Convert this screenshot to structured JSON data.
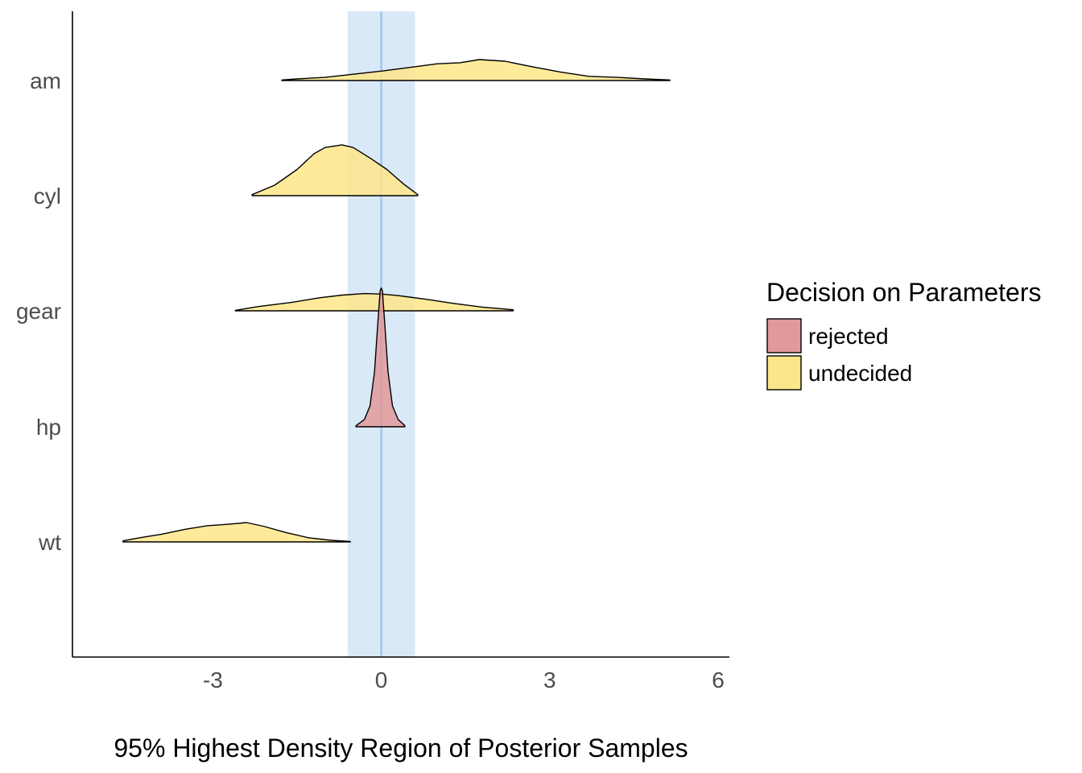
{
  "chart_data": {
    "type": "density-ridges",
    "xlabel": "95% Highest Density Region of Posterior Samples",
    "ylabel": "",
    "xlim": [
      -5.5,
      6.2
    ],
    "xticks": [
      -3,
      0,
      3,
      6
    ],
    "xtick_labels": [
      "-3",
      "0",
      "3",
      "6"
    ],
    "categories": [
      "am",
      "cyl",
      "gear",
      "hp",
      "wt"
    ],
    "rope": {
      "low": -0.6,
      "high": 0.6,
      "center": 0,
      "color": "#c6ddf5",
      "line_color": "#a9cbee"
    },
    "legend": {
      "title": "Decision on Parameters",
      "placement": "right",
      "items": [
        {
          "label": "rejected",
          "color": "#e19999"
        },
        {
          "label": "undecided",
          "color": "#fde68a"
        }
      ]
    },
    "series": [
      {
        "name": "am",
        "decision": "undecided",
        "points": [
          [
            -1.77,
            0.01
          ],
          [
            -1.5,
            0.03
          ],
          [
            -1.0,
            0.06
          ],
          [
            -0.5,
            0.12
          ],
          [
            0,
            0.18
          ],
          [
            0.5,
            0.25
          ],
          [
            1.0,
            0.32
          ],
          [
            1.4,
            0.34
          ],
          [
            1.75,
            0.4
          ],
          [
            2.2,
            0.37
          ],
          [
            2.7,
            0.26
          ],
          [
            3.2,
            0.16
          ],
          [
            3.7,
            0.08
          ],
          [
            4.2,
            0.06
          ],
          [
            4.7,
            0.03
          ],
          [
            5.14,
            0.01
          ]
        ]
      },
      {
        "name": "cyl",
        "decision": "undecided",
        "points": [
          [
            -2.3,
            0.02
          ],
          [
            -1.9,
            0.2
          ],
          [
            -1.5,
            0.5
          ],
          [
            -1.2,
            0.8
          ],
          [
            -1.0,
            0.92
          ],
          [
            -0.7,
            0.97
          ],
          [
            -0.5,
            0.92
          ],
          [
            -0.2,
            0.72
          ],
          [
            0.1,
            0.5
          ],
          [
            0.4,
            0.22
          ],
          [
            0.65,
            0.02
          ]
        ]
      },
      {
        "name": "gear",
        "decision": "undecided",
        "points": [
          [
            -2.6,
            0.01
          ],
          [
            -2.2,
            0.08
          ],
          [
            -1.6,
            0.16
          ],
          [
            -1.1,
            0.25
          ],
          [
            -0.7,
            0.3
          ],
          [
            -0.3,
            0.33
          ],
          [
            0,
            0.32
          ],
          [
            0.3,
            0.29
          ],
          [
            0.8,
            0.22
          ],
          [
            1.3,
            0.14
          ],
          [
            1.8,
            0.07
          ],
          [
            2.35,
            0.02
          ]
        ]
      },
      {
        "name": "hp",
        "decision": "rejected",
        "points": [
          [
            -0.45,
            0.02
          ],
          [
            -0.3,
            0.14
          ],
          [
            -0.2,
            0.4
          ],
          [
            -0.12,
            1.05
          ],
          [
            -0.06,
            2.0
          ],
          [
            -0.02,
            2.6
          ],
          [
            0,
            2.65
          ],
          [
            0.02,
            2.6
          ],
          [
            0.06,
            2.0
          ],
          [
            0.12,
            1.05
          ],
          [
            0.2,
            0.4
          ],
          [
            0.3,
            0.14
          ],
          [
            0.42,
            0.02
          ]
        ]
      },
      {
        "name": "wt",
        "decision": "undecided",
        "points": [
          [
            -4.6,
            0.02
          ],
          [
            -4.3,
            0.08
          ],
          [
            -3.9,
            0.15
          ],
          [
            -3.5,
            0.24
          ],
          [
            -3.1,
            0.31
          ],
          [
            -2.7,
            0.34
          ],
          [
            -2.4,
            0.37
          ],
          [
            -2.1,
            0.3
          ],
          [
            -1.7,
            0.18
          ],
          [
            -1.3,
            0.08
          ],
          [
            -0.9,
            0.03
          ],
          [
            -0.55,
            0.01
          ]
        ]
      }
    ]
  }
}
